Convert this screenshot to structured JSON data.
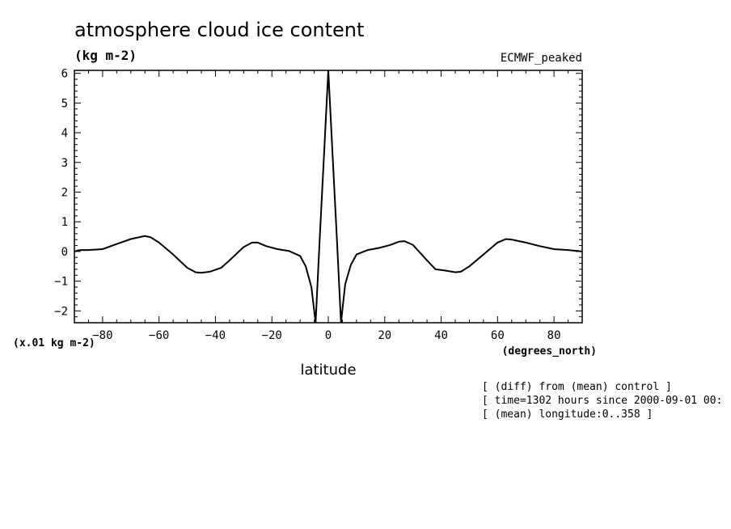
{
  "chart_data": {
    "type": "line",
    "title": "atmosphere cloud ice content",
    "units": "(kg m-2)",
    "experiment": "ECMWF_peaked",
    "ylabel_scale": "(x.01 kg m-2)",
    "xlabel": "latitude",
    "xunit": "(degrees_north)",
    "xlim": [
      -90,
      90
    ],
    "ylim": [
      -2.4,
      6.1
    ],
    "xticks": [
      -80,
      -60,
      -40,
      -20,
      0,
      20,
      40,
      60,
      80
    ],
    "yticks": [
      -2,
      -1,
      0,
      1,
      2,
      3,
      4,
      5,
      6
    ],
    "notes": [
      "[ (diff) from (mean) control ]",
      "[ time=1302 hours since 2000-09-01 00:",
      "[ (mean) longitude:0..358 ]"
    ],
    "series": [
      {
        "x": [
          -90,
          -88,
          -85,
          -80,
          -75,
          -70,
          -65,
          -63,
          -60,
          -55,
          -50,
          -47,
          -45,
          -42,
          -38,
          -35,
          -30,
          -27,
          -25,
          -22,
          -18,
          -14,
          -10,
          -8,
          -6,
          -4.5,
          -3,
          -1.5,
          0,
          1.5,
          3,
          4.5,
          6,
          8,
          10,
          14,
          18,
          22,
          25,
          27,
          30,
          35,
          38,
          42,
          45,
          47,
          50,
          55,
          60,
          63,
          65,
          70,
          75,
          80,
          85,
          90
        ],
        "y": [
          0.0,
          0.05,
          0.05,
          0.08,
          0.25,
          0.42,
          0.52,
          0.48,
          0.3,
          -0.1,
          -0.55,
          -0.7,
          -0.72,
          -0.68,
          -0.55,
          -0.3,
          0.15,
          0.3,
          0.3,
          0.18,
          0.08,
          0.02,
          -0.15,
          -0.5,
          -1.2,
          -2.4,
          0.5,
          3.3,
          6.1,
          3.3,
          0.5,
          -2.4,
          -1.1,
          -0.45,
          -0.1,
          0.05,
          0.12,
          0.22,
          0.33,
          0.35,
          0.22,
          -0.3,
          -0.6,
          -0.65,
          -0.7,
          -0.68,
          -0.5,
          -0.1,
          0.3,
          0.42,
          0.4,
          0.3,
          0.18,
          0.08,
          0.05,
          0.0
        ]
      }
    ]
  }
}
